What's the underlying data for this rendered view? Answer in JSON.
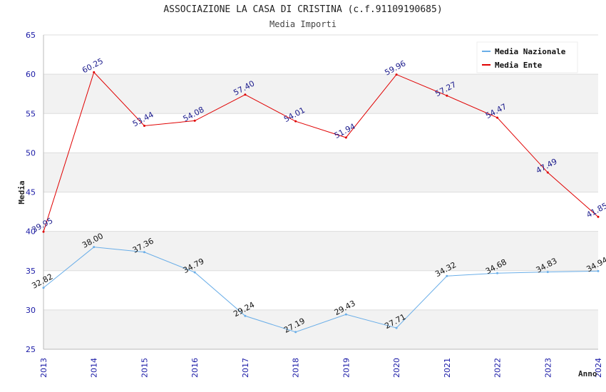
{
  "chart_data": {
    "type": "line",
    "title": "ASSOCIAZIONE LA CASA DI CRISTINA (c.f.91109190685)",
    "subtitle": "Media Importi",
    "xlabel": "Anno",
    "ylabel": "Media",
    "ylim": [
      25,
      65
    ],
    "yticks": [
      "25",
      "30",
      "35",
      "40",
      "45",
      "50",
      "55",
      "60",
      "65"
    ],
    "categories": [
      "2013",
      "2014",
      "2015",
      "2016",
      "2017",
      "2018",
      "2019",
      "2020",
      "2021",
      "2022",
      "2023",
      "2024"
    ],
    "legend_position": "top-right",
    "grid": true,
    "series": [
      {
        "name": "Media Nazionale",
        "color": "#6aaee8",
        "label_color": "#111111",
        "values": [
          32.82,
          38.0,
          37.36,
          34.79,
          29.24,
          27.19,
          29.43,
          27.71,
          34.32,
          34.68,
          34.83,
          34.94
        ],
        "labels": [
          "32.82",
          "38.00",
          "37.36",
          "34.79",
          "29.24",
          "27.19",
          "29.43",
          "27.71",
          "34.32",
          "34.68",
          "34.83",
          "34.94"
        ]
      },
      {
        "name": "Media Ente",
        "color": "#e00000",
        "label_color": "#1a1a8c",
        "values": [
          39.95,
          60.25,
          53.44,
          54.08,
          57.4,
          54.01,
          51.94,
          59.96,
          57.27,
          54.47,
          47.49,
          41.85
        ],
        "labels": [
          "39.95",
          "60.25",
          "53.44",
          "54.08",
          "57.40",
          "54.01",
          "51.94",
          "59.96",
          "57.27",
          "54.47",
          "47.49",
          "41.85"
        ]
      }
    ]
  }
}
